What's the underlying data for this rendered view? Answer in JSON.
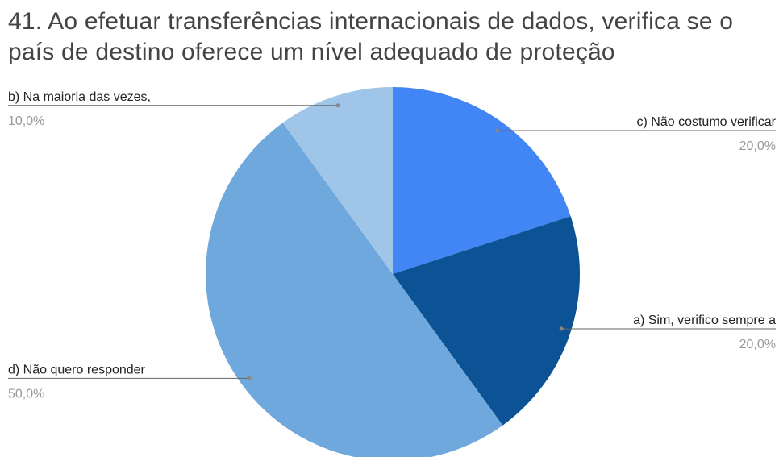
{
  "chart_data": {
    "type": "pie",
    "title": "41. Ao efetuar transferências internacionais de dados, verifica se o país de destino oferece um nível adequado de proteção",
    "categories": [
      "c) Não costumo verificar",
      "a) Sim, verifico sempre a",
      "d) Não quero responder",
      "b) Na maioria das vezes,"
    ],
    "values": [
      20,
      20,
      50,
      10
    ],
    "value_labels": [
      "20,0%",
      "20,0%",
      "50,0%",
      "10,0%"
    ],
    "colors": [
      "#4285f4",
      "#0b5394",
      "#6fa8dc",
      "#9fc5e8"
    ]
  }
}
